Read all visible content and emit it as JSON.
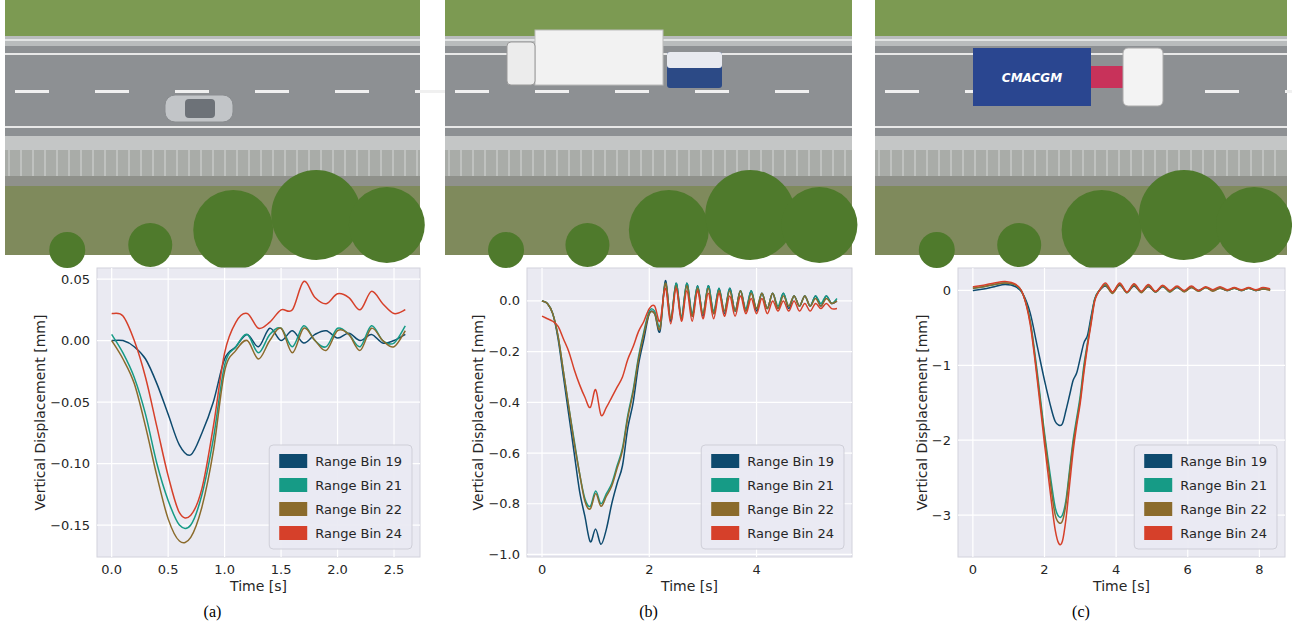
{
  "chart_data": [
    {
      "type": "line",
      "caption": "(a)",
      "xlabel": "Time [s]",
      "ylabel": "Vertical Displacement [mm]",
      "x": [
        0,
        0.1,
        0.2,
        0.3,
        0.4,
        0.5,
        0.6,
        0.7,
        0.8,
        0.9,
        1.0,
        1.1,
        1.2,
        1.3,
        1.4,
        1.5,
        1.6,
        1.7,
        1.8,
        1.9,
        2.0,
        2.1,
        2.2,
        2.3,
        2.4,
        2.5,
        2.6
      ],
      "series": [
        {
          "name": "Range Bin 19",
          "color": "#0e4a6e",
          "values": [
            0.0,
            0.0,
            -0.005,
            -0.015,
            -0.035,
            -0.06,
            -0.085,
            -0.093,
            -0.075,
            -0.05,
            -0.015,
            -0.005,
            0.005,
            -0.005,
            0.01,
            0.0,
            0.008,
            -0.002,
            0.005,
            0.008,
            0.002,
            0.006,
            0.0,
            0.005,
            -0.002,
            0.0,
            0.005
          ]
        },
        {
          "name": "Range Bin 21",
          "color": "#169b86",
          "values": [
            0.005,
            -0.01,
            -0.03,
            -0.06,
            -0.1,
            -0.13,
            -0.15,
            -0.15,
            -0.125,
            -0.08,
            -0.02,
            -0.005,
            0.005,
            -0.01,
            0.005,
            0.01,
            -0.005,
            0.012,
            0.0,
            -0.005,
            0.01,
            0.005,
            -0.005,
            0.012,
            0.0,
            -0.002,
            0.012
          ]
        },
        {
          "name": "Range Bin 22",
          "color": "#8b6b2c",
          "values": [
            0.0,
            -0.015,
            -0.035,
            -0.07,
            -0.11,
            -0.145,
            -0.163,
            -0.16,
            -0.135,
            -0.09,
            -0.025,
            -0.008,
            0.0,
            -0.015,
            0.0,
            0.01,
            -0.01,
            0.01,
            0.0,
            -0.008,
            0.008,
            0.005,
            -0.008,
            0.01,
            0.0,
            -0.005,
            0.008
          ]
        },
        {
          "name": "Range Bin 24",
          "color": "#d6402a",
          "values": [
            0.022,
            0.02,
            0.0,
            -0.03,
            -0.07,
            -0.11,
            -0.14,
            -0.142,
            -0.12,
            -0.07,
            -0.01,
            0.015,
            0.022,
            0.01,
            0.015,
            0.025,
            0.025,
            0.048,
            0.035,
            0.03,
            0.038,
            0.035,
            0.025,
            0.04,
            0.03,
            0.022,
            0.025
          ]
        }
      ],
      "xlim": [
        -0.13,
        2.73
      ],
      "ylim": [
        -0.176,
        0.059
      ],
      "xticks": [
        {
          "value": 0,
          "label": "0.0"
        },
        0.5,
        {
          "value": 1,
          "label": "1.0"
        },
        1.5,
        {
          "value": 2,
          "label": "2.0"
        },
        2.5
      ],
      "yticks": [
        {
          "value": -0.15,
          "label": "−0.15"
        },
        {
          "value": -0.1,
          "label": "−0.10"
        },
        {
          "value": -0.05,
          "label": "−0.05"
        },
        {
          "value": 0,
          "label": "0.00"
        },
        0.05
      ],
      "grid": true,
      "legend": "lower right"
    },
    {
      "type": "line",
      "caption": "(b)",
      "xlabel": "Time [s]",
      "ylabel": "Vertical Displacement [mm]",
      "x": [
        0,
        0.1,
        0.2,
        0.3,
        0.4,
        0.5,
        0.6,
        0.7,
        0.8,
        0.9,
        1.0,
        1.1,
        1.2,
        1.3,
        1.4,
        1.5,
        1.6,
        1.7,
        1.8,
        1.9,
        2.0,
        2.1,
        2.2,
        2.3,
        2.4,
        2.5,
        2.6,
        2.7,
        2.8,
        2.9,
        3.0,
        3.1,
        3.2,
        3.3,
        3.4,
        3.5,
        3.6,
        3.7,
        3.8,
        3.9,
        4.0,
        4.1,
        4.2,
        4.3,
        4.4,
        4.5,
        4.6,
        4.7,
        4.8,
        4.9,
        5.0,
        5.1,
        5.2,
        5.3,
        5.4,
        5.5
      ],
      "series": [
        {
          "name": "Range Bin 19",
          "color": "#0e4a6e",
          "values": [
            0.0,
            -0.01,
            -0.05,
            -0.15,
            -0.3,
            -0.45,
            -0.6,
            -0.75,
            -0.85,
            -0.95,
            -0.9,
            -0.96,
            -0.9,
            -0.8,
            -0.72,
            -0.65,
            -0.5,
            -0.4,
            -0.25,
            -0.15,
            -0.05,
            -0.05,
            -0.12,
            0.08,
            -0.08,
            0.07,
            -0.07,
            0.07,
            -0.06,
            0.06,
            -0.06,
            0.06,
            -0.05,
            0.05,
            -0.05,
            0.05,
            -0.04,
            0.04,
            -0.04,
            0.04,
            -0.04,
            0.03,
            -0.03,
            0.03,
            -0.03,
            0.03,
            -0.03,
            0.02,
            -0.02,
            0.02,
            -0.02,
            0.02,
            -0.02,
            0.02,
            -0.01,
            0.0
          ]
        },
        {
          "name": "Range Bin 21",
          "color": "#169b86",
          "values": [
            0.0,
            -0.01,
            -0.05,
            -0.14,
            -0.28,
            -0.42,
            -0.55,
            -0.68,
            -0.78,
            -0.81,
            -0.75,
            -0.8,
            -0.76,
            -0.72,
            -0.65,
            -0.58,
            -0.45,
            -0.35,
            -0.22,
            -0.12,
            -0.04,
            -0.04,
            -0.1,
            0.07,
            -0.07,
            0.07,
            -0.06,
            0.07,
            -0.05,
            0.06,
            -0.05,
            0.06,
            -0.04,
            0.05,
            -0.04,
            0.05,
            -0.04,
            0.04,
            -0.03,
            0.04,
            -0.03,
            0.03,
            -0.03,
            0.03,
            -0.02,
            0.03,
            -0.02,
            0.02,
            -0.02,
            0.02,
            -0.02,
            0.02,
            -0.01,
            0.02,
            -0.01,
            0.01
          ]
        },
        {
          "name": "Range Bin 22",
          "color": "#8b6b2c",
          "values": [
            0.0,
            -0.01,
            -0.05,
            -0.14,
            -0.28,
            -0.42,
            -0.56,
            -0.68,
            -0.79,
            -0.82,
            -0.76,
            -0.81,
            -0.77,
            -0.73,
            -0.66,
            -0.59,
            -0.46,
            -0.36,
            -0.23,
            -0.13,
            -0.05,
            -0.05,
            -0.11,
            0.07,
            -0.07,
            0.06,
            -0.07,
            0.06,
            -0.06,
            0.05,
            -0.05,
            0.05,
            -0.05,
            0.04,
            -0.04,
            0.04,
            -0.04,
            0.04,
            -0.04,
            0.03,
            -0.03,
            0.03,
            -0.03,
            0.03,
            -0.03,
            0.02,
            -0.02,
            0.02,
            -0.02,
            0.02,
            -0.02,
            0.01,
            -0.02,
            0.01,
            -0.01,
            0.0
          ]
        },
        {
          "name": "Range Bin 24",
          "color": "#d6402a",
          "values": [
            -0.06,
            -0.07,
            -0.08,
            -0.1,
            -0.15,
            -0.2,
            -0.27,
            -0.33,
            -0.38,
            -0.42,
            -0.35,
            -0.45,
            -0.42,
            -0.38,
            -0.34,
            -0.3,
            -0.23,
            -0.18,
            -0.12,
            -0.08,
            -0.03,
            -0.02,
            -0.08,
            0.05,
            -0.09,
            0.05,
            -0.08,
            0.04,
            -0.08,
            0.04,
            -0.07,
            0.03,
            -0.07,
            0.03,
            -0.06,
            0.02,
            -0.06,
            0.02,
            -0.05,
            0.01,
            -0.05,
            0.01,
            -0.05,
            0.0,
            -0.04,
            0.0,
            -0.04,
            0.0,
            -0.04,
            -0.01,
            -0.04,
            -0.01,
            -0.03,
            -0.01,
            -0.03,
            -0.03
          ]
        }
      ],
      "xlim": [
        -0.28,
        5.78
      ],
      "ylim": [
        -1.01,
        0.13
      ],
      "xticks": [
        0,
        2,
        4
      ],
      "yticks": [
        {
          "value": -1,
          "label": "−1.0"
        },
        {
          "value": -0.8,
          "label": "−0.8"
        },
        {
          "value": -0.6,
          "label": "−0.6"
        },
        {
          "value": -0.4,
          "label": "−0.4"
        },
        {
          "value": -0.2,
          "label": "−0.2"
        },
        {
          "value": 0,
          "label": "0.0"
        }
      ],
      "grid": true,
      "legend": "lower right"
    },
    {
      "type": "line",
      "caption": "(c)",
      "xlabel": "Time [s]",
      "ylabel": "Vertical Displacement [mm]",
      "annotations": [
        "CMACGM"
      ],
      "x": [
        0,
        0.3,
        0.6,
        0.9,
        1.2,
        1.4,
        1.6,
        1.8,
        2.0,
        2.2,
        2.3,
        2.4,
        2.5,
        2.6,
        2.7,
        2.8,
        2.9,
        3.0,
        3.1,
        3.2,
        3.3,
        3.4,
        3.5,
        3.7,
        3.9,
        4.1,
        4.3,
        4.5,
        4.7,
        4.9,
        5.1,
        5.3,
        5.5,
        5.7,
        5.9,
        6.1,
        6.3,
        6.5,
        6.7,
        6.9,
        7.1,
        7.3,
        7.5,
        7.7,
        7.9,
        8.1,
        8.3
      ],
      "series": [
        {
          "name": "Range Bin 19",
          "color": "#0e4a6e",
          "values": [
            0.0,
            0.02,
            0.05,
            0.08,
            0.05,
            -0.05,
            -0.3,
            -0.75,
            -1.2,
            -1.6,
            -1.75,
            -1.8,
            -1.78,
            -1.6,
            -1.4,
            -1.2,
            -1.1,
            -0.9,
            -0.7,
            -0.6,
            -0.35,
            -0.12,
            -0.02,
            0.06,
            -0.02,
            0.07,
            -0.02,
            0.06,
            -0.02,
            0.05,
            -0.02,
            0.05,
            -0.01,
            0.04,
            -0.01,
            0.04,
            0.0,
            0.04,
            0.0,
            0.03,
            0.0,
            0.03,
            0.0,
            0.03,
            0.0,
            0.02,
            0.01
          ]
        },
        {
          "name": "Range Bin 21",
          "color": "#169b86",
          "values": [
            0.03,
            0.05,
            0.08,
            0.1,
            0.07,
            -0.05,
            -0.4,
            -1.1,
            -1.9,
            -2.6,
            -2.9,
            -3.02,
            -3.0,
            -2.8,
            -2.4,
            -2.0,
            -1.7,
            -1.4,
            -1.0,
            -0.7,
            -0.4,
            -0.12,
            -0.02,
            0.08,
            -0.03,
            0.09,
            -0.03,
            0.08,
            -0.02,
            0.07,
            -0.02,
            0.06,
            -0.02,
            0.05,
            -0.01,
            0.05,
            -0.01,
            0.04,
            0.0,
            0.04,
            0.0,
            0.03,
            0.0,
            0.03,
            0.0,
            0.03,
            0.01
          ]
        },
        {
          "name": "Range Bin 22",
          "color": "#8b6b2c",
          "values": [
            0.03,
            0.05,
            0.08,
            0.1,
            0.07,
            -0.05,
            -0.42,
            -1.15,
            -1.95,
            -2.7,
            -3.0,
            -3.1,
            -3.08,
            -2.85,
            -2.45,
            -2.05,
            -1.75,
            -1.45,
            -1.05,
            -0.72,
            -0.42,
            -0.13,
            -0.02,
            0.07,
            -0.04,
            0.08,
            -0.03,
            0.07,
            -0.03,
            0.06,
            -0.02,
            0.06,
            -0.02,
            0.05,
            -0.02,
            0.04,
            -0.01,
            0.04,
            -0.01,
            0.03,
            0.0,
            0.03,
            0.0,
            0.03,
            0.0,
            0.02,
            0.0
          ]
        },
        {
          "name": "Range Bin 24",
          "color": "#d6402a",
          "values": [
            0.05,
            0.07,
            0.1,
            0.12,
            0.08,
            -0.05,
            -0.45,
            -1.2,
            -2.05,
            -2.85,
            -3.2,
            -3.38,
            -3.35,
            -3.05,
            -2.6,
            -2.15,
            -1.8,
            -1.5,
            -1.1,
            -0.75,
            -0.45,
            -0.15,
            -0.03,
            0.1,
            -0.02,
            0.1,
            -0.02,
            0.09,
            -0.01,
            0.08,
            -0.01,
            0.07,
            0.0,
            0.06,
            0.0,
            0.06,
            0.0,
            0.05,
            0.01,
            0.05,
            0.01,
            0.04,
            0.01,
            0.04,
            0.01,
            0.04,
            0.02
          ]
        }
      ],
      "xlim": [
        -0.415,
        8.715
      ],
      "ylim": [
        -3.56,
        0.3
      ],
      "xticks": [
        0,
        2,
        4,
        6,
        8
      ],
      "yticks": [
        {
          "value": -3,
          "label": "−3"
        },
        {
          "value": -2,
          "label": "−2"
        },
        {
          "value": -1,
          "label": "−1"
        },
        0
      ],
      "grid": true,
      "legend": "lower right"
    }
  ]
}
